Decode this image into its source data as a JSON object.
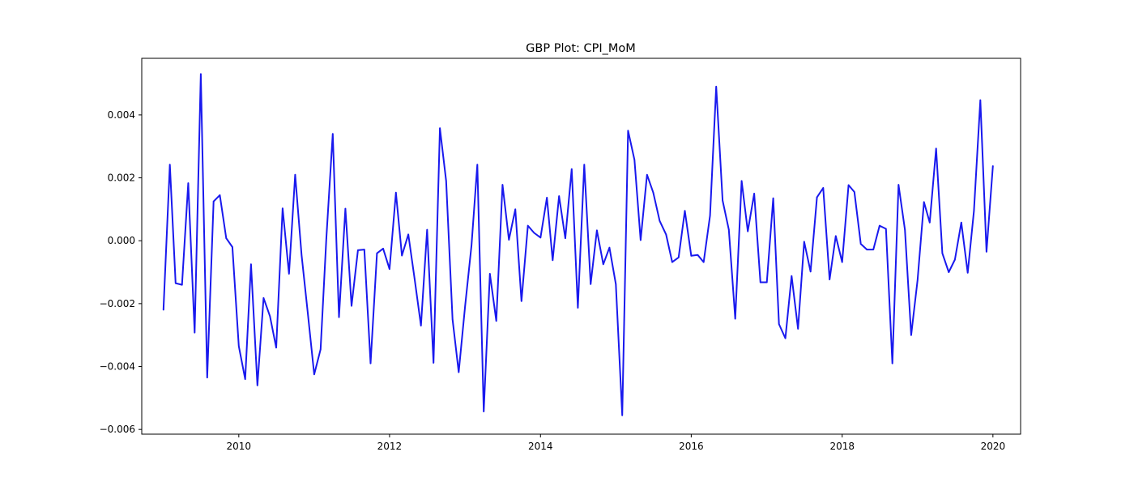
{
  "chart_data": {
    "type": "line",
    "title": "GBP Plot: CPI_MoM",
    "xlabel": "",
    "ylabel": "",
    "xlim": [
      "2008-09-18",
      "2020-05-14"
    ],
    "ylim": [
      -0.00615,
      0.0058
    ],
    "grid": false,
    "line_color": "#1919ee",
    "x_ticks": [
      "2010-01-01",
      "2012-01-01",
      "2014-01-01",
      "2016-01-01",
      "2018-01-01",
      "2020-01-01"
    ],
    "x_tick_labels": [
      "2010",
      "2012",
      "2014",
      "2016",
      "2018",
      "2020"
    ],
    "y_ticks": [
      -0.006,
      -0.004,
      -0.002,
      0.0,
      0.002,
      0.004
    ],
    "y_tick_labels": [
      "−0.006",
      "−0.004",
      "−0.002",
      "0.000",
      "0.002",
      "0.004"
    ],
    "series": [
      {
        "x": [
          "2009-01-01",
          "2009-02-01",
          "2009-03-01",
          "2009-04-01",
          "2009-05-01",
          "2009-06-01",
          "2009-07-01",
          "2009-08-01",
          "2009-09-01",
          "2009-10-01",
          "2009-11-01",
          "2009-12-01",
          "2010-01-01",
          "2010-02-01",
          "2010-03-01",
          "2010-04-01",
          "2010-05-01",
          "2010-06-01",
          "2010-07-01",
          "2010-08-01",
          "2010-09-01",
          "2010-10-01",
          "2010-11-01",
          "2010-12-01",
          "2011-01-01",
          "2011-02-01",
          "2011-03-01",
          "2011-04-01",
          "2011-05-01",
          "2011-06-01",
          "2011-07-01",
          "2011-08-01",
          "2011-09-01",
          "2011-10-01",
          "2011-11-01",
          "2011-12-01",
          "2012-01-01",
          "2012-02-01",
          "2012-03-01",
          "2012-04-01",
          "2012-05-01",
          "2012-06-01",
          "2012-07-01",
          "2012-08-01",
          "2012-09-01",
          "2012-10-01",
          "2012-11-01",
          "2012-12-01",
          "2013-01-01",
          "2013-02-01",
          "2013-03-01",
          "2013-04-01",
          "2013-05-01",
          "2013-06-01",
          "2013-07-01",
          "2013-08-01",
          "2013-09-01",
          "2013-10-01",
          "2013-11-01",
          "2013-12-01",
          "2014-01-01",
          "2014-02-01",
          "2014-03-01",
          "2014-04-01",
          "2014-05-01",
          "2014-06-01",
          "2014-07-01",
          "2014-08-01",
          "2014-09-01",
          "2014-10-01",
          "2014-11-01",
          "2014-12-01",
          "2015-01-01",
          "2015-02-01",
          "2015-03-01",
          "2015-04-01",
          "2015-05-01",
          "2015-06-01",
          "2015-07-01",
          "2015-08-01",
          "2015-09-01",
          "2015-10-01",
          "2015-11-01",
          "2015-12-01",
          "2016-01-01",
          "2016-02-01",
          "2016-03-01",
          "2016-04-01",
          "2016-05-01",
          "2016-06-01",
          "2016-07-01",
          "2016-08-01",
          "2016-09-01",
          "2016-10-01",
          "2016-11-01",
          "2016-12-01",
          "2017-01-01",
          "2017-02-01",
          "2017-03-01",
          "2017-04-01",
          "2017-05-01",
          "2017-06-01",
          "2017-07-01",
          "2017-08-01",
          "2017-09-01",
          "2017-10-01",
          "2017-11-01",
          "2017-12-01",
          "2018-01-01",
          "2018-02-01",
          "2018-03-01",
          "2018-04-01",
          "2018-05-01",
          "2018-06-01",
          "2018-07-01",
          "2018-08-01",
          "2018-09-01",
          "2018-10-01",
          "2018-11-01",
          "2018-12-01",
          "2019-01-01",
          "2019-02-01",
          "2019-03-01",
          "2019-04-01",
          "2019-05-01",
          "2019-06-01",
          "2019-07-01",
          "2019-08-01",
          "2019-09-01",
          "2019-10-01",
          "2019-11-01",
          "2019-12-01",
          "2020-01-01"
        ],
        "y": [
          -0.0022,
          0.00242,
          -0.00135,
          -0.0014,
          0.00183,
          -0.00292,
          0.0053,
          -0.00435,
          0.00125,
          0.00145,
          8e-05,
          -0.0002,
          -0.00335,
          -0.0044,
          -0.00075,
          -0.0046,
          -0.00182,
          -0.0024,
          -0.0034,
          0.00103,
          -0.00105,
          0.0021,
          -0.00045,
          -0.0023,
          -0.00425,
          -0.00345,
          8e-05,
          0.0034,
          -0.00243,
          0.00102,
          -0.00207,
          -0.0003,
          -0.00028,
          -0.0039,
          -0.0004,
          -0.00025,
          -0.0009,
          0.00153,
          -0.00047,
          0.0002,
          -0.0012,
          -0.0027,
          0.00035,
          -0.00388,
          0.00358,
          0.0019,
          -0.0025,
          -0.00418,
          -0.00208,
          -0.00015,
          0.00242,
          -0.00543,
          -0.00105,
          -0.00255,
          0.00178,
          3e-05,
          0.001,
          -0.00192,
          0.00048,
          0.00025,
          0.0001,
          0.00137,
          -0.00062,
          0.00142,
          8e-05,
          0.00228,
          -0.00213,
          0.00242,
          -0.00138,
          0.00033,
          -0.00075,
          -0.00022,
          -0.00138,
          -0.00555,
          0.0035,
          0.00257,
          2e-05,
          0.0021,
          0.00153,
          0.00063,
          0.0002,
          -0.00068,
          -0.00053,
          0.00095,
          -0.00048,
          -0.00045,
          -0.00068,
          0.0008,
          0.0049,
          0.00128,
          0.00035,
          -0.00248,
          0.0019,
          0.0003,
          0.0015,
          -0.00132,
          -0.00132,
          0.00135,
          -0.00265,
          -0.0031,
          -0.00112,
          -0.0028,
          -3e-05,
          -0.00098,
          0.00138,
          0.00168,
          -0.00123,
          0.00015,
          -0.00068,
          0.00177,
          0.00155,
          -0.0001,
          -0.00028,
          -0.00028,
          0.00048,
          0.00038,
          -0.0039,
          0.00178,
          0.00035,
          -0.003,
          -0.00125,
          0.00123,
          0.00058,
          0.00293,
          -0.0004,
          -0.001,
          -0.0006,
          0.00058,
          -0.00102,
          0.00095,
          0.00447,
          -0.00035,
          0.00238
        ]
      }
    ]
  }
}
